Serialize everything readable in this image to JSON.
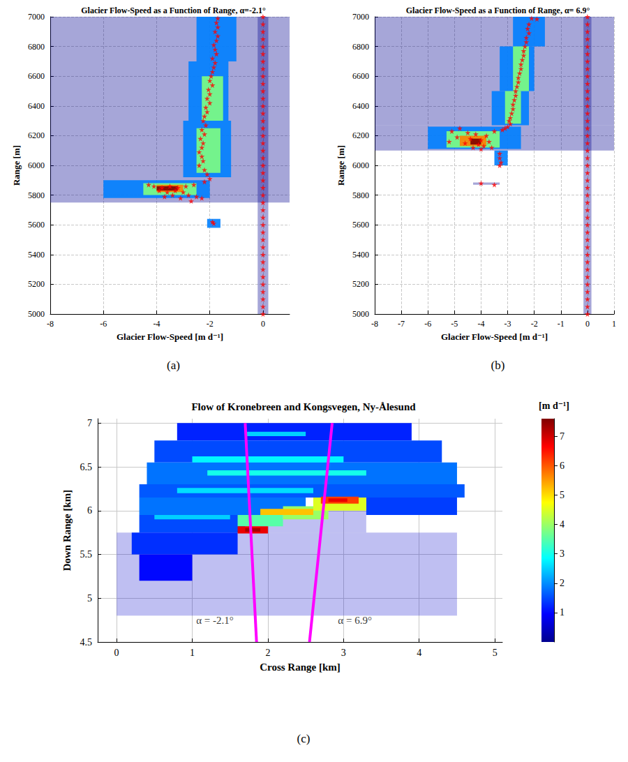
{
  "chart_data": [
    {
      "type": "scatter",
      "title": "Glacier Flow-Speed as a Function of Range, α=-2.1°",
      "panel_label": "(a)",
      "xlabel": "Glacier Flow-Speed [m d⁻¹]",
      "ylabel": "Range [m]",
      "xlim": [
        -8,
        1
      ],
      "xticks": [
        -8,
        -6,
        -4,
        -2,
        0
      ],
      "ylim": [
        5000,
        7000
      ],
      "yticks": [
        5000,
        5200,
        5400,
        5600,
        5800,
        6000,
        6200,
        6400,
        6600,
        6800,
        7000
      ],
      "grid": true,
      "cells": [
        [
          -8,
          1,
          5750,
          5920,
          1
        ],
        [
          -8,
          1,
          5920,
          7000,
          1
        ],
        [
          -0.2,
          0.2,
          5000,
          7000,
          1
        ],
        [
          -6,
          -2,
          5780,
          5900,
          2
        ],
        [
          -4.5,
          -2.5,
          5800,
          5880,
          3
        ],
        [
          -4,
          -3,
          5820,
          5870,
          4
        ],
        [
          -4,
          -3.2,
          5830,
          5860,
          5
        ],
        [
          -3,
          -1.2,
          5920,
          6300,
          2
        ],
        [
          -2.8,
          -1.3,
          6300,
          6700,
          2
        ],
        [
          -2.5,
          -1,
          6700,
          7000,
          2
        ],
        [
          -2.5,
          -1.6,
          5950,
          6250,
          3
        ],
        [
          -2.3,
          -1.5,
          6300,
          6600,
          3
        ],
        [
          -2.1,
          -1.6,
          5580,
          5640,
          2
        ]
      ],
      "series": [
        {
          "marker": "star",
          "color": "#ff0000",
          "x": [
            -1.7,
            -1.75,
            -1.7,
            -1.8,
            -1.7,
            -1.75,
            -1.85,
            -1.8,
            -1.75,
            -1.9,
            -1.8,
            -1.85,
            -1.9,
            -1.95,
            -2.0,
            -1.9,
            -2.05,
            -2.0,
            -2.1,
            -2.0,
            -2.15,
            -2.1,
            -2.2,
            -2.25,
            -2.15,
            -2.3,
            -2.2,
            -2.35,
            -2.25,
            -2.3,
            -2.4,
            -2.3,
            -2.25,
            -2.4,
            -2.2,
            -2.1,
            -2.0,
            -2.2,
            -2.6,
            -2.9,
            -3.2,
            -3.5,
            -3.8,
            -4.1,
            -3.3,
            -3.0,
            -3.6,
            -3.9,
            -2.8,
            -3.4,
            -2.5,
            -4.3,
            -3.7,
            -2.3,
            -3.1,
            -2.7,
            -1.9,
            -1.85
          ],
          "y": [
            6990,
            6960,
            6930,
            6900,
            6870,
            6840,
            6810,
            6780,
            6750,
            6720,
            6690,
            6660,
            6630,
            6600,
            6570,
            6540,
            6510,
            6480,
            6450,
            6420,
            6390,
            6360,
            6330,
            6300,
            6270,
            6240,
            6210,
            6180,
            6150,
            6120,
            6090,
            6060,
            6030,
            6000,
            5970,
            5940,
            5910,
            5890,
            5870,
            5860,
            5850,
            5860,
            5850,
            5860,
            5830,
            5820,
            5820,
            5830,
            5800,
            5800,
            5790,
            5870,
            5790,
            5780,
            5780,
            5760,
            5620,
            5610
          ]
        },
        {
          "marker": "star",
          "color": "#ff0000",
          "x": [
            0,
            0,
            0,
            0,
            0,
            0,
            0,
            0,
            0,
            0,
            0,
            0,
            0,
            0,
            0,
            0,
            0,
            0,
            0,
            0,
            0,
            0,
            0,
            0,
            0,
            0,
            0,
            0,
            0,
            0,
            0,
            0,
            0,
            0,
            0,
            0,
            0,
            0,
            0,
            0,
            0
          ],
          "y": [
            5000,
            5050,
            5100,
            5150,
            5200,
            5250,
            5300,
            5350,
            5400,
            5450,
            5500,
            5550,
            5600,
            5650,
            5700,
            5750,
            5800,
            5850,
            5900,
            5950,
            6000,
            6050,
            6100,
            6150,
            6200,
            6250,
            6300,
            6350,
            6400,
            6450,
            6500,
            6550,
            6600,
            6650,
            6700,
            6750,
            6800,
            6850,
            6900,
            6950,
            7000
          ]
        }
      ]
    },
    {
      "type": "scatter",
      "title": "Glacier Flow-Speed as a Function of Range, α= 6.9°",
      "panel_label": "(b)",
      "xlabel": "Glacier Flow-Speed [m d⁻¹]",
      "ylabel": "Range [m]",
      "xlim": [
        -8,
        1
      ],
      "xticks": [
        -8,
        -7,
        -6,
        -5,
        -4,
        -3,
        -2,
        -1,
        0,
        1
      ],
      "ylim": [
        5000,
        7000
      ],
      "yticks": [
        5000,
        5200,
        5400,
        5600,
        5800,
        6000,
        6200,
        6400,
        6600,
        6800,
        7000
      ],
      "grid": true,
      "cells": [
        [
          -8,
          1,
          6100,
          6270,
          1
        ],
        [
          -8,
          1,
          6270,
          7000,
          1
        ],
        [
          -0.15,
          0.15,
          5000,
          7000,
          1
        ],
        [
          -4.3,
          -3.3,
          5870,
          5885,
          1
        ],
        [
          -6,
          -2.5,
          6110,
          6260,
          2
        ],
        [
          -5.3,
          -3.3,
          6120,
          6230,
          3
        ],
        [
          -4.8,
          -3.8,
          6130,
          6200,
          4
        ],
        [
          -4.4,
          -4,
          6140,
          6180,
          5
        ],
        [
          -3.6,
          -2.2,
          6270,
          6500,
          2
        ],
        [
          -3.3,
          -2,
          6500,
          6800,
          2
        ],
        [
          -2.8,
          -1.6,
          6800,
          7000,
          2
        ],
        [
          -3.1,
          -2.5,
          6280,
          6500,
          3
        ],
        [
          -2.8,
          -2.2,
          6500,
          6800,
          3
        ],
        [
          -3.5,
          -3.0,
          6000,
          6100,
          2
        ]
      ],
      "series": [
        {
          "marker": "star",
          "color": "#ff0000",
          "x": [
            -2.1,
            -1.9,
            -2.2,
            -2.25,
            -2.2,
            -2.3,
            -2.3,
            -2.35,
            -2.4,
            -2.4,
            -2.45,
            -2.5,
            -2.5,
            -2.55,
            -2.6,
            -2.6,
            -2.65,
            -2.7,
            -2.7,
            -2.75,
            -2.8,
            -2.8,
            -2.85,
            -2.9,
            -2.95,
            -2.9,
            -3.0,
            -3.1,
            -3.2,
            -3.5,
            -4.8,
            -5.1,
            -4.5,
            -4.2,
            -3.8,
            -4.9,
            -4.4,
            -4.0,
            -3.7,
            -5.2,
            -4.6,
            -4.1,
            -3.9,
            -4.3,
            -3.6,
            -4.0,
            -3.3,
            -3.3,
            -3.25,
            -3.3,
            -4.0,
            -3.5
          ],
          "y": [
            6990,
            6985,
            6950,
            6920,
            6890,
            6860,
            6830,
            6800,
            6770,
            6740,
            6710,
            6680,
            6650,
            6620,
            6590,
            6560,
            6530,
            6500,
            6470,
            6440,
            6410,
            6380,
            6350,
            6320,
            6300,
            6280,
            6260,
            6250,
            6240,
            6230,
            6250,
            6230,
            6220,
            6210,
            6200,
            6190,
            6180,
            6170,
            6160,
            6160,
            6150,
            6140,
            6130,
            6120,
            6120,
            6110,
            6080,
            6050,
            6020,
            6000,
            5880,
            5870
          ]
        },
        {
          "marker": "star",
          "color": "#ff0000",
          "x": [
            0,
            0,
            0,
            0,
            0,
            0,
            0,
            0,
            0,
            0,
            0,
            0,
            0,
            0,
            0,
            0,
            0,
            0,
            0,
            0,
            0,
            0,
            0,
            0,
            0,
            0,
            0,
            0,
            0,
            0,
            0,
            0,
            0,
            0,
            0,
            0,
            0,
            0,
            0,
            0,
            0
          ],
          "y": [
            5000,
            5050,
            5100,
            5150,
            5200,
            5250,
            5300,
            5350,
            5400,
            5450,
            5500,
            5550,
            5600,
            5650,
            5700,
            5750,
            5800,
            5850,
            5900,
            5950,
            6000,
            6050,
            6100,
            6150,
            6200,
            6250,
            6300,
            6350,
            6400,
            6450,
            6500,
            6550,
            6600,
            6650,
            6700,
            6750,
            6800,
            6850,
            6900,
            6950,
            7000
          ]
        }
      ]
    },
    {
      "type": "heatmap",
      "title": "Flow of Kronebreen and Kongsvegen, Ny-Ålesund",
      "panel_label": "(c)",
      "xlabel": "Cross Range [km]",
      "ylabel": "Down Range [km]",
      "xlim": [
        -0.25,
        5.1
      ],
      "xticks": [
        0,
        1,
        2,
        3,
        4,
        5
      ],
      "ylim": [
        4.5,
        7.05
      ],
      "yticks": [
        4.5,
        5,
        5.5,
        6,
        6.5,
        7
      ],
      "grid": true,
      "colorbar": {
        "label": "[m d⁻¹]",
        "lim": [
          0,
          7.6
        ],
        "ticks": [
          1,
          2,
          3,
          4,
          5,
          6,
          7
        ]
      },
      "cells": [
        [
          0,
          4.5,
          4.8,
          5.75,
          0.5
        ],
        [
          1.7,
          3.3,
          5.75,
          6.0,
          0.5
        ],
        [
          0.8,
          3.9,
          6.8,
          7.0,
          1.2
        ],
        [
          0.5,
          4.3,
          6.55,
          6.8,
          1.5
        ],
        [
          0.4,
          4.5,
          6.3,
          6.55,
          1.8
        ],
        [
          0.3,
          4.6,
          6.15,
          6.3,
          1.6
        ],
        [
          0.3,
          2.5,
          5.95,
          6.15,
          1.8
        ],
        [
          3.3,
          4.5,
          5.95,
          6.15,
          1.4
        ],
        [
          0.3,
          1.7,
          5.75,
          5.95,
          1.5
        ],
        [
          0.2,
          1.6,
          5.5,
          5.75,
          1.3
        ],
        [
          0.3,
          1.0,
          5.2,
          5.5,
          1.0
        ],
        [
          1.0,
          3.0,
          6.55,
          6.62,
          2.8
        ],
        [
          1.2,
          3.3,
          6.4,
          6.46,
          3
        ],
        [
          0.8,
          2.6,
          6.2,
          6.26,
          2.6
        ],
        [
          1.7,
          2.5,
          6.85,
          6.9,
          2.5
        ],
        [
          0.5,
          1.5,
          5.9,
          5.95,
          2.5
        ],
        [
          1.6,
          2.2,
          5.82,
          5.95,
          3.5
        ],
        [
          2.2,
          2.8,
          5.9,
          6.05,
          4
        ],
        [
          2.6,
          3.3,
          6.0,
          6.15,
          4.5
        ],
        [
          1.9,
          2.6,
          5.95,
          6.02,
          5.2
        ],
        [
          1.6,
          2.0,
          5.74,
          5.82,
          6.8
        ],
        [
          1.7,
          1.9,
          5.76,
          5.8,
          7.3
        ],
        [
          2.7,
          3.2,
          6.08,
          6.16,
          6.2
        ],
        [
          2.8,
          3.05,
          6.1,
          6.14,
          6.8
        ]
      ],
      "lines": [
        {
          "label": "α = -2.1°",
          "color": "#ff00ff",
          "x": [
            1.85,
            1.7
          ],
          "y": [
            4.5,
            7.0
          ],
          "label_xy": [
            1.3,
            4.75
          ]
        },
        {
          "label": "α = 6.9°",
          "color": "#ff00ff",
          "x": [
            2.55,
            2.85
          ],
          "y": [
            4.5,
            7.0
          ],
          "label_xy": [
            3.15,
            4.75
          ]
        }
      ]
    }
  ]
}
